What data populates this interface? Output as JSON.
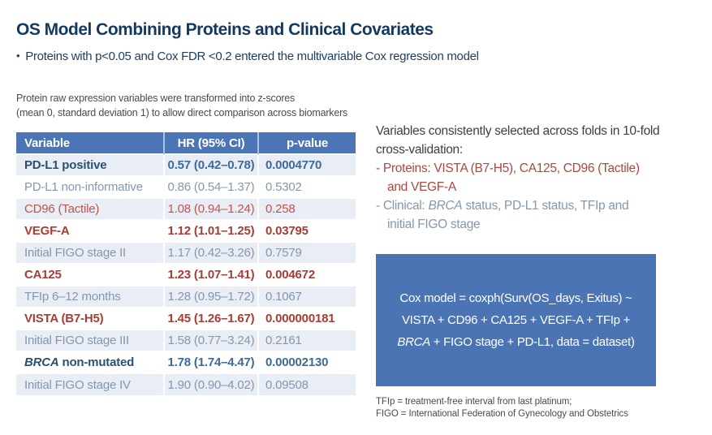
{
  "colors": {
    "title_navy": "#14395f",
    "table_header_blue": "#4b75b5",
    "model_box_blue": "#4b74b4",
    "row_stripe": "#e9edf6",
    "bold_red": "#a93c32",
    "plain_red": "#bf544b",
    "bold_steel_blue": "#2c5170",
    "gray_blue": "#8497ac"
  },
  "header": {
    "title": "OS Model Combining Proteins and Clinical Covariates",
    "bullet_marker": "•",
    "bullet_text": "Proteins with p<0.05 and Cox FDR <0.2 entered the multivariable Cox regression model"
  },
  "note": {
    "line1": "Protein raw expression variables were transformed into z-scores",
    "line2": "(mean 0, standard deviation 1) to allow direct comparison across biomarkers"
  },
  "table": {
    "headers": {
      "variable": "Variable",
      "hr": "HR (95% CI)",
      "p": "p-value"
    },
    "rows": [
      {
        "variable": "PD-L1 positive",
        "hr": "0.57 (0.42–0.78)",
        "p": "0.0004770"
      },
      {
        "variable": "PD-L1 non-informative",
        "hr": "0.86 (0.54–1.37)",
        "p": "0.5302"
      },
      {
        "variable": "CD96 (Tactile)",
        "hr": "1.08 (0.94–1.24)",
        "p": "0.258"
      },
      {
        "variable": "VEGF-A",
        "hr": "1.12 (1.01–1.25)",
        "p": "0.03795"
      },
      {
        "variable": "Initial FIGO stage II",
        "hr": "1.17 (0.42–3.26)",
        "p": "0.7579"
      },
      {
        "variable": "CA125",
        "hr": "1.23 (1.07–1.41)",
        "p": "0.004672"
      },
      {
        "variable": "TFIp 6–12 months",
        "hr": "1.28 (0.95–1.72)",
        "p": "0.1067"
      },
      {
        "variable": "VISTA (B7-H5)",
        "hr": "1.45 (1.26–1.67)",
        "p": "0.000000181"
      },
      {
        "variable": "Initial FIGO stage III",
        "hr": "1.58 (0.77–3.24)",
        "p": "0.2161"
      },
      {
        "variable_italic": "BRCA",
        "variable": " non-mutated",
        "hr": "1.78 (1.74–4.47)",
        "p": "0.00002130"
      },
      {
        "variable": "Initial FIGO stage IV",
        "hr": "1.90 (0.90–4.02)",
        "p": "0.09508"
      }
    ]
  },
  "crossval": {
    "heading_line1": "Variables consistently selected across folds in 10-fold",
    "heading_line2": "cross-validation:",
    "proteins_line1": "- Proteins: VISTA (B7-H5), CA125, CD96 (Tactile)",
    "proteins_line2": "and VEGF-A",
    "clinical_pre": "- Clinical: ",
    "clinical_italic": "BRCA",
    "clinical_post": " status, PD-L1 status, TFIp and",
    "clinical_line2": "initial FIGO stage"
  },
  "model_box": {
    "line1": "Cox model = coxph(Surv(OS_days, Exitus) ~",
    "line2": "VISTA + CD96 + CA125 + VEGF-A + TFIp +",
    "line3_italic": "BRCA",
    "line3_post": " + FIGO stage + PD-L1, data = dataset)"
  },
  "footnote": {
    "line1": "TFIp = treatment-free interval from last platinum;",
    "line2": "FIGO = International Federation of Gynecology and Obstetrics"
  }
}
